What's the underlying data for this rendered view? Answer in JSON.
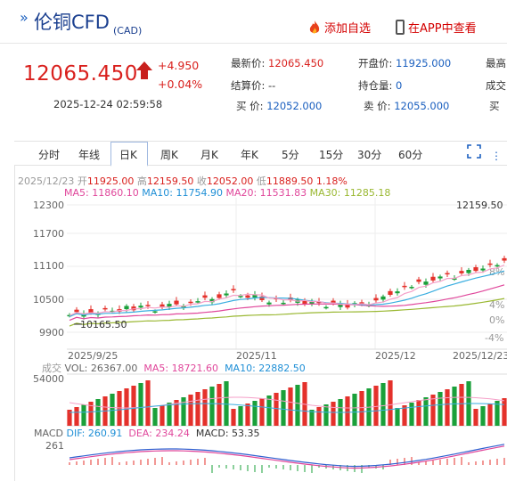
{
  "header": {
    "title": "伦铜CFD",
    "currency": "(CAD)",
    "add_watch_label": "添加自选",
    "app_view_label": "在APP中查看",
    "brand_red": "#d40000",
    "title_blue": "#1a3f8f"
  },
  "quote": {
    "last_price": "12065.450",
    "change": "+4.950",
    "change_pct": "+0.04%",
    "timestamp": "2025-12-24 02:59:58",
    "fields": {
      "latest_label": "最新价:",
      "latest_value": "12065.450",
      "open_label": "开盘价:",
      "open_value": "11925.000",
      "high_label": "最高",
      "settle_label": "结算价:",
      "settle_value": "--",
      "oi_label": "持仓量:",
      "oi_value": "0",
      "volume_label": "成交",
      "bid_label": "买  价:",
      "bid_value": "12052.000",
      "ask_label": "卖  价:",
      "ask_value": "12055.000",
      "buy_label": "买"
    },
    "up_color": "#d9201d"
  },
  "tabs": [
    "分时",
    "年线",
    "日K",
    "周K",
    "月K",
    "年K",
    "5分",
    "15分",
    "30分",
    "60分"
  ],
  "active_tab": "日K",
  "kline_info": {
    "date": "2025/12/23",
    "open_label": "开",
    "open": "11925.00",
    "high_label": "高",
    "high": "12159.50",
    "close_label": "收",
    "close": "12052.00",
    "low_label": "低",
    "low": "11889.50",
    "change_pct": "1.18%",
    "ma5_label": "MA5:",
    "ma5": "11860.10",
    "ma10_label": "MA10:",
    "ma10": "11754.90",
    "ma20_label": "MA20:",
    "ma20": "11531.83",
    "ma30_label": "MA30:",
    "ma30": "11285.18",
    "ma5_color": "#e0479b",
    "ma10_color": "#1f8fd6",
    "ma20_color": "#e0479b",
    "ma30_color": "#9ab832"
  },
  "price_axis": {
    "ticks": [
      "12300",
      "11700",
      "11100",
      "10500",
      "9900"
    ],
    "pct_ticks": [
      "8%",
      "4%",
      "0%",
      "-4%"
    ],
    "max_label": "12159.50",
    "min_label": "10165.50"
  },
  "x_axis": [
    "2025/9/25",
    "2025/11",
    "2025/12",
    "2025/12/23"
  ],
  "volume_info": {
    "label": "成交",
    "vol_label": "VOL:",
    "vol": "26367.00",
    "ma5_label": "MA5:",
    "ma5": "18721.60",
    "ma10_label": "MA10:",
    "ma10": "22882.50",
    "axis_max": "54000"
  },
  "macd_info": {
    "label": "MACD",
    "dif_label": "DIF:",
    "dif": "260.91",
    "dea_label": "DEA:",
    "dea": "234.24",
    "macd_label": "MACD:",
    "macd": "53.35",
    "axis_max": "261"
  }
}
